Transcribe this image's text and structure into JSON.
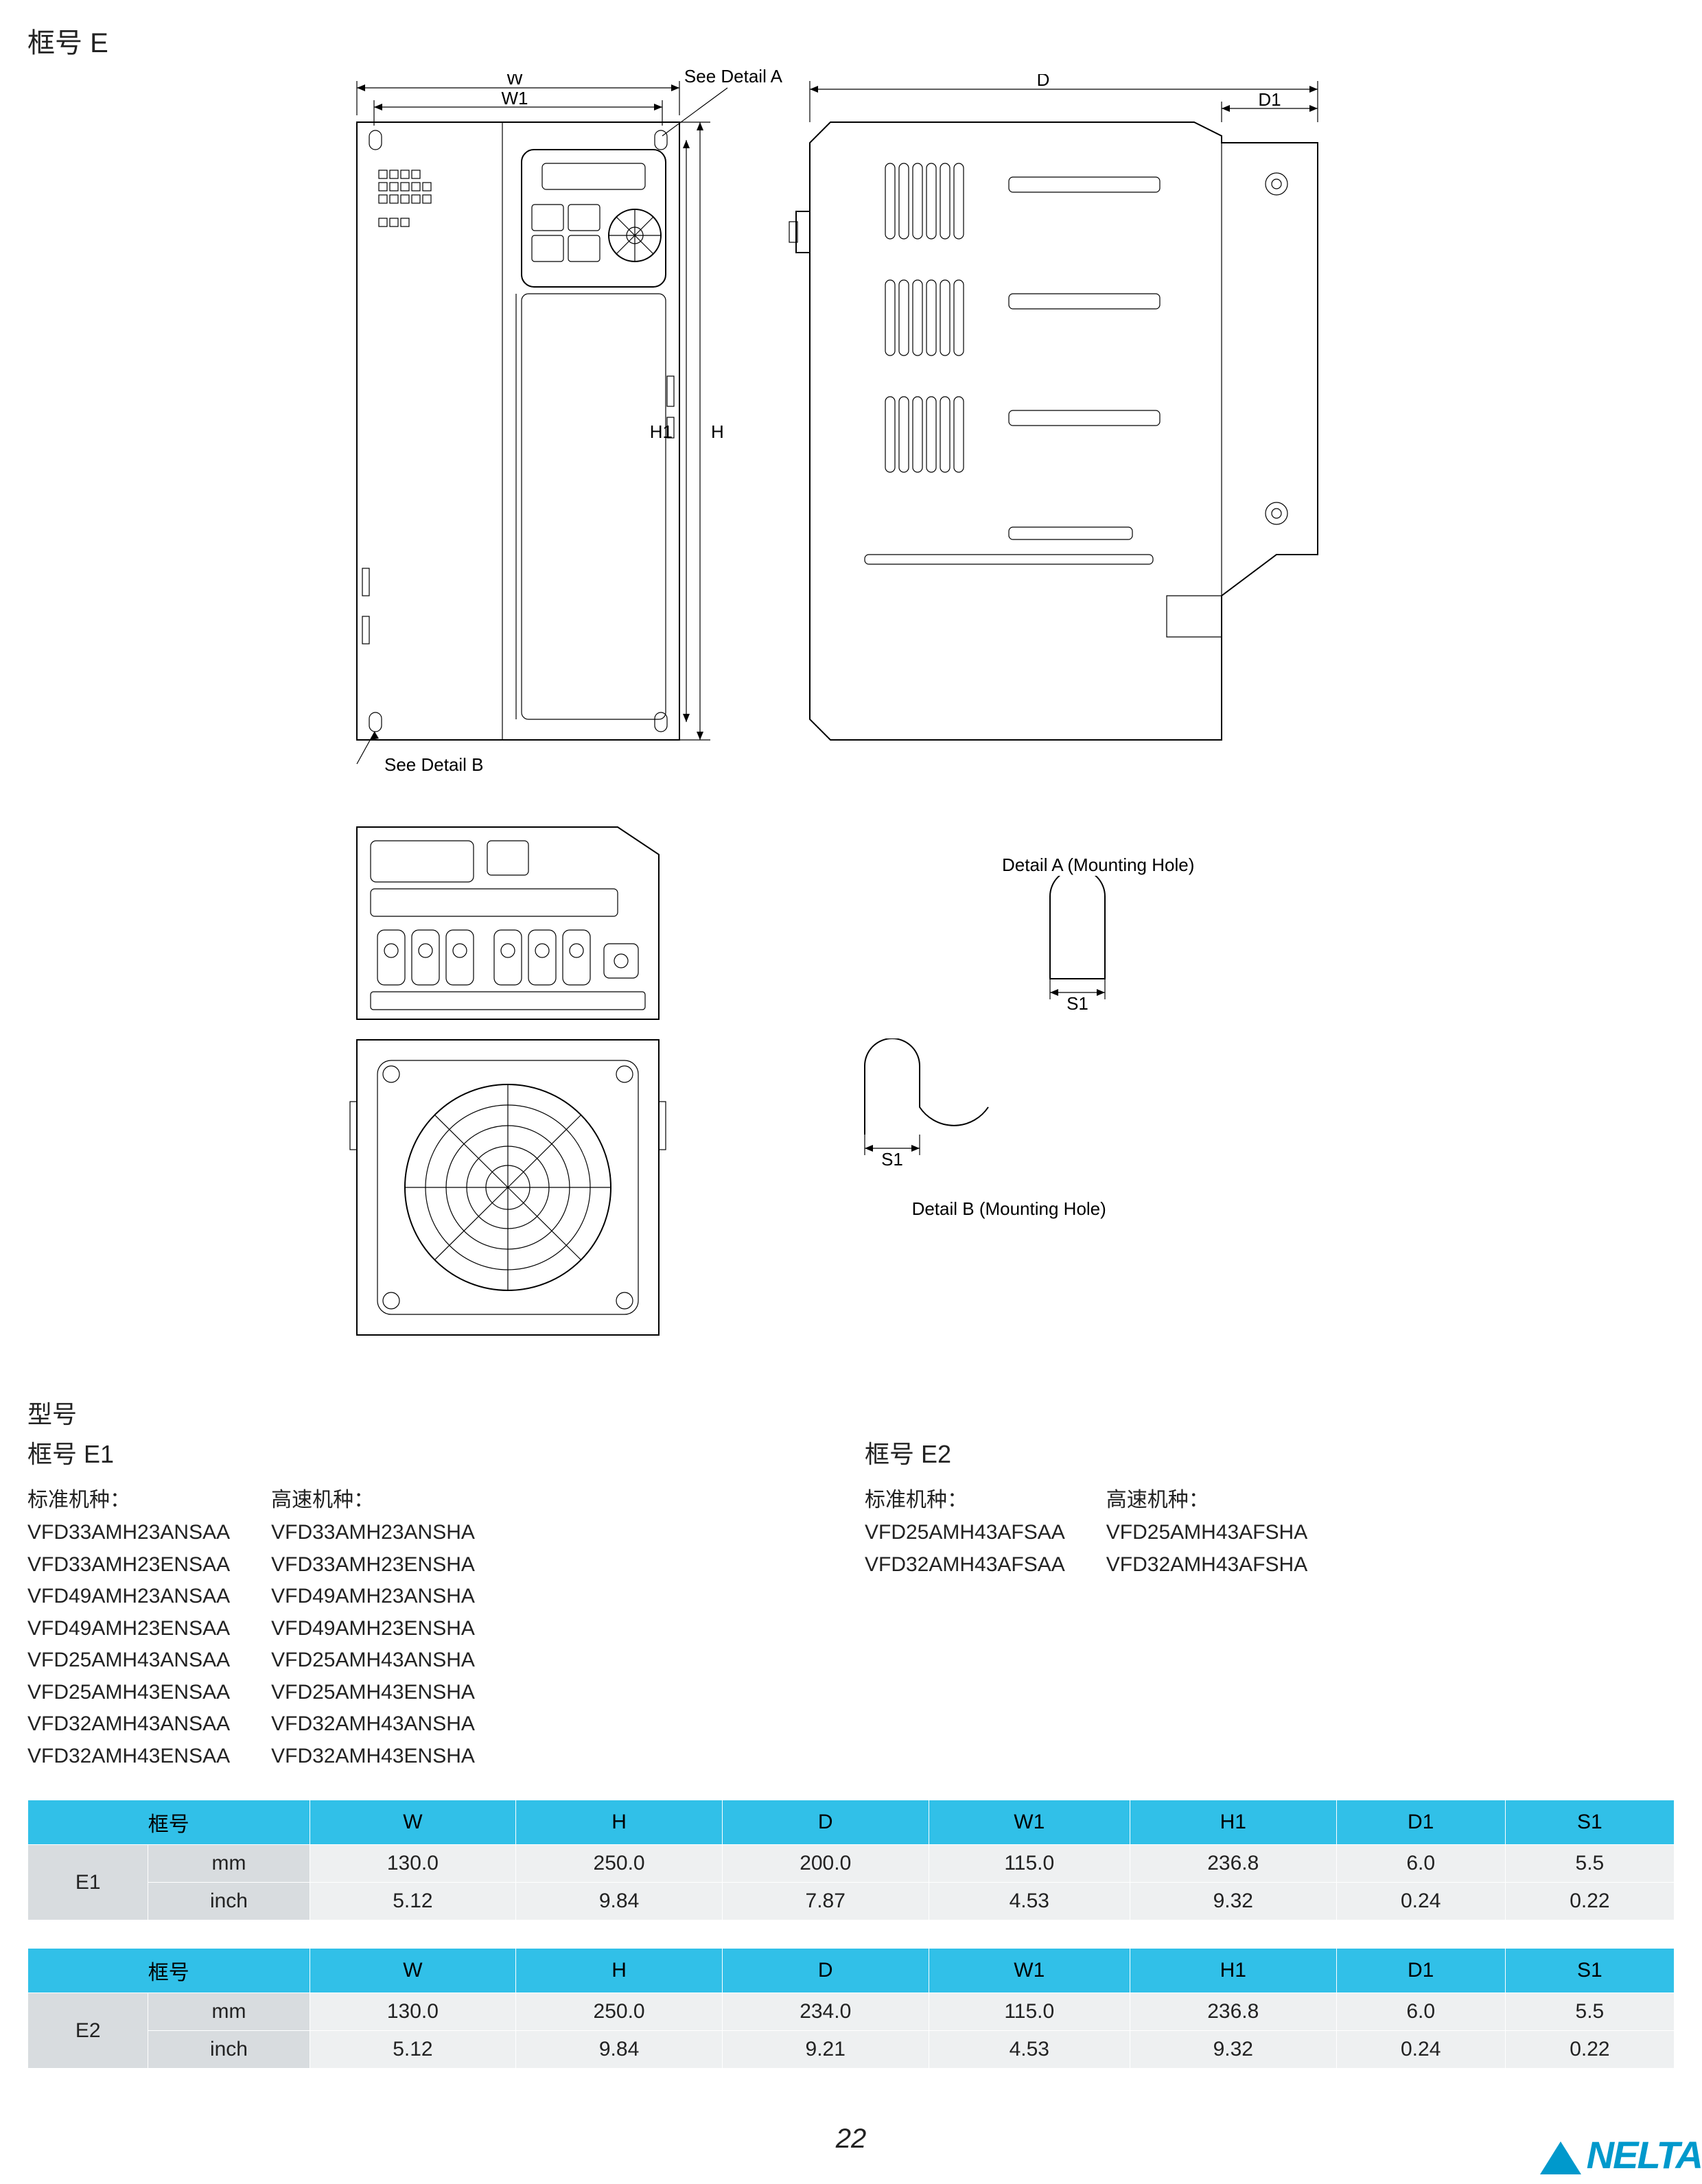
{
  "page_title": "框号 E",
  "drawing_labels": {
    "see_detail_a": "See Detail A",
    "see_detail_b": "See Detail B",
    "W": "W",
    "W1": "W1",
    "H": "H",
    "H1": "H1",
    "D": "D",
    "D1": "D1",
    "S1": "S1",
    "detail_a_caption": "Detail A (Mounting Hole)",
    "detail_b_caption": "Detail B (Mounting Hole)"
  },
  "models": {
    "section_title": "型号",
    "frames": [
      {
        "title": "框号 E1",
        "columns": [
          {
            "heading": "标准机种：",
            "items": [
              "VFD33AMH23ANSAA",
              "VFD33AMH23ENSAA",
              "VFD49AMH23ANSAA",
              "VFD49AMH23ENSAA",
              "VFD25AMH43ANSAA",
              "VFD25AMH43ENSAA",
              "VFD32AMH43ANSAA",
              "VFD32AMH43ENSAA"
            ]
          },
          {
            "heading": "高速机种：",
            "items": [
              "VFD33AMH23ANSHA",
              "VFD33AMH23ENSHA",
              "VFD49AMH23ANSHA",
              "VFD49AMH23ENSHA",
              "VFD25AMH43ANSHA",
              "VFD25AMH43ENSHA",
              "VFD32AMH43ANSHA",
              "VFD32AMH43ENSHA"
            ]
          }
        ]
      },
      {
        "title": "框号 E2",
        "columns": [
          {
            "heading": "标准机种：",
            "items": [
              "VFD25AMH43AFSAA",
              "VFD32AMH43AFSAA"
            ]
          },
          {
            "heading": "高速机种：",
            "items": [
              "VFD25AMH43AFSHA",
              "VFD32AMH43AFSHA"
            ]
          }
        ]
      }
    ]
  },
  "tables": [
    {
      "frame_label": "框号",
      "frame_value": "E1",
      "headers": [
        "W",
        "H",
        "D",
        "W1",
        "H1",
        "D1",
        "S1"
      ],
      "rows": [
        {
          "unit": "mm",
          "values": [
            "130.0",
            "250.0",
            "200.0",
            "115.0",
            "236.8",
            "6.0",
            "5.5"
          ]
        },
        {
          "unit": "inch",
          "values": [
            "5.12",
            "9.84",
            "7.87",
            "4.53",
            "9.32",
            "0.24",
            "0.22"
          ]
        }
      ]
    },
    {
      "frame_label": "框号",
      "frame_value": "E2",
      "headers": [
        "W",
        "H",
        "D",
        "W1",
        "H1",
        "D1",
        "S1"
      ],
      "rows": [
        {
          "unit": "mm",
          "values": [
            "130.0",
            "250.0",
            "234.0",
            "115.0",
            "236.8",
            "6.0",
            "5.5"
          ]
        },
        {
          "unit": "inch",
          "values": [
            "5.12",
            "9.84",
            "9.21",
            "4.53",
            "9.32",
            "0.24",
            "0.22"
          ]
        }
      ]
    }
  ],
  "page_number": "22",
  "brand": "NELTA",
  "colors": {
    "header_bg": "#31c0e8",
    "cell_bg": "#eef0f1",
    "rowhead_bg": "#d8dcdf",
    "brand": "#0099cc"
  }
}
